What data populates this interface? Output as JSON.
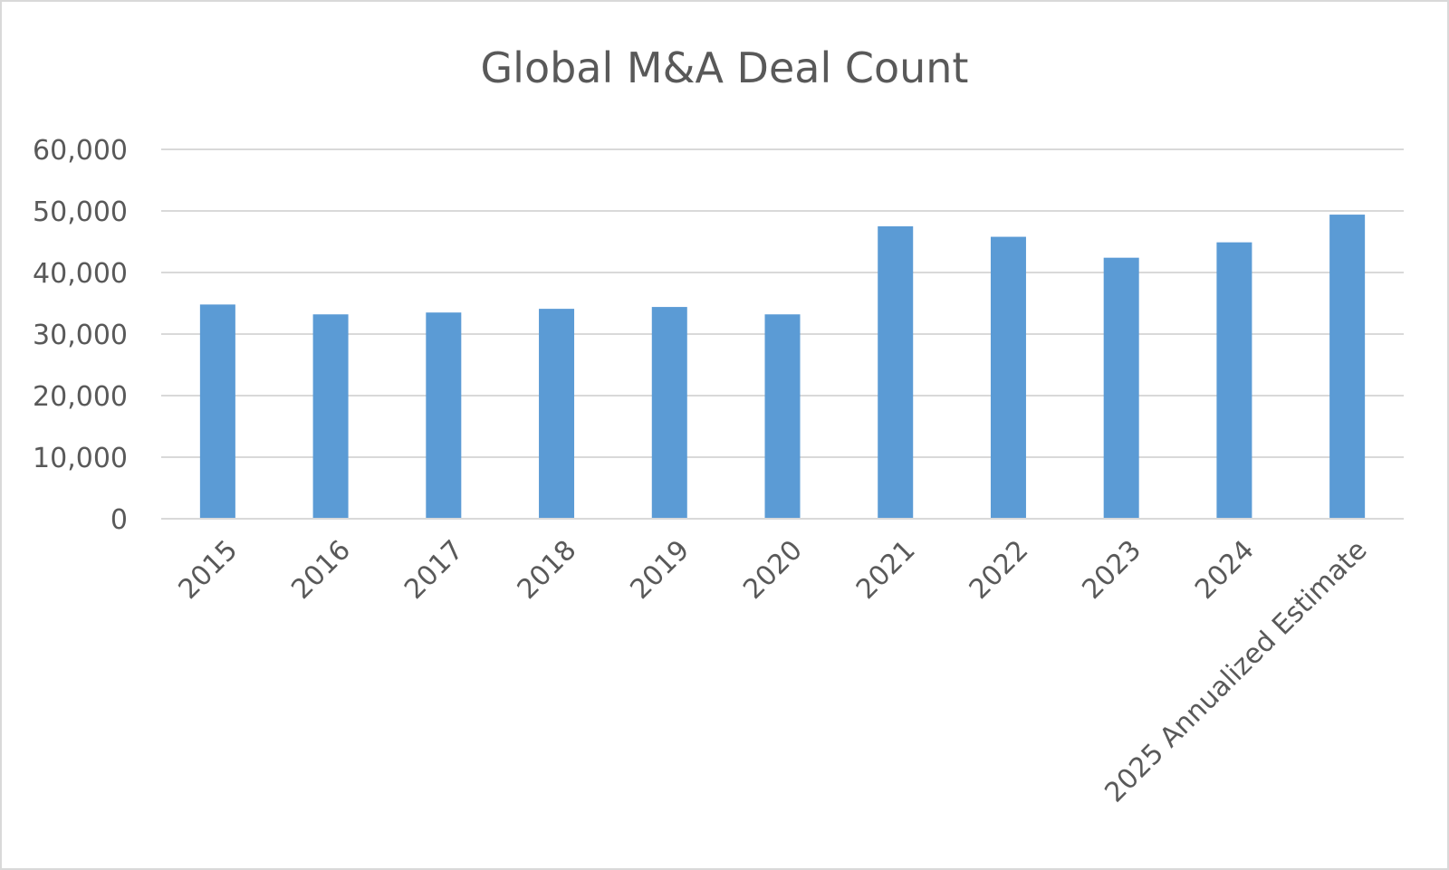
{
  "chart_data": {
    "type": "bar",
    "title": "Global M&A Deal Count",
    "xlabel": "",
    "ylabel": "",
    "categories": [
      "2015",
      "2016",
      "2017",
      "2018",
      "2019",
      "2020",
      "2021",
      "2022",
      "2023",
      "2024",
      "2025 Annualized Estimate"
    ],
    "values": [
      34800,
      33200,
      33500,
      34100,
      34400,
      33200,
      47500,
      45800,
      42400,
      44900,
      49400
    ],
    "ylim": [
      0,
      60000
    ],
    "yticks": [
      0,
      10000,
      20000,
      30000,
      40000,
      50000,
      60000
    ],
    "ytick_labels": [
      "0",
      "10,000",
      "20,000",
      "30,000",
      "40,000",
      "50,000",
      "60,000"
    ],
    "grid": true,
    "legend": "none",
    "bar_color": "#5b9bd5"
  }
}
